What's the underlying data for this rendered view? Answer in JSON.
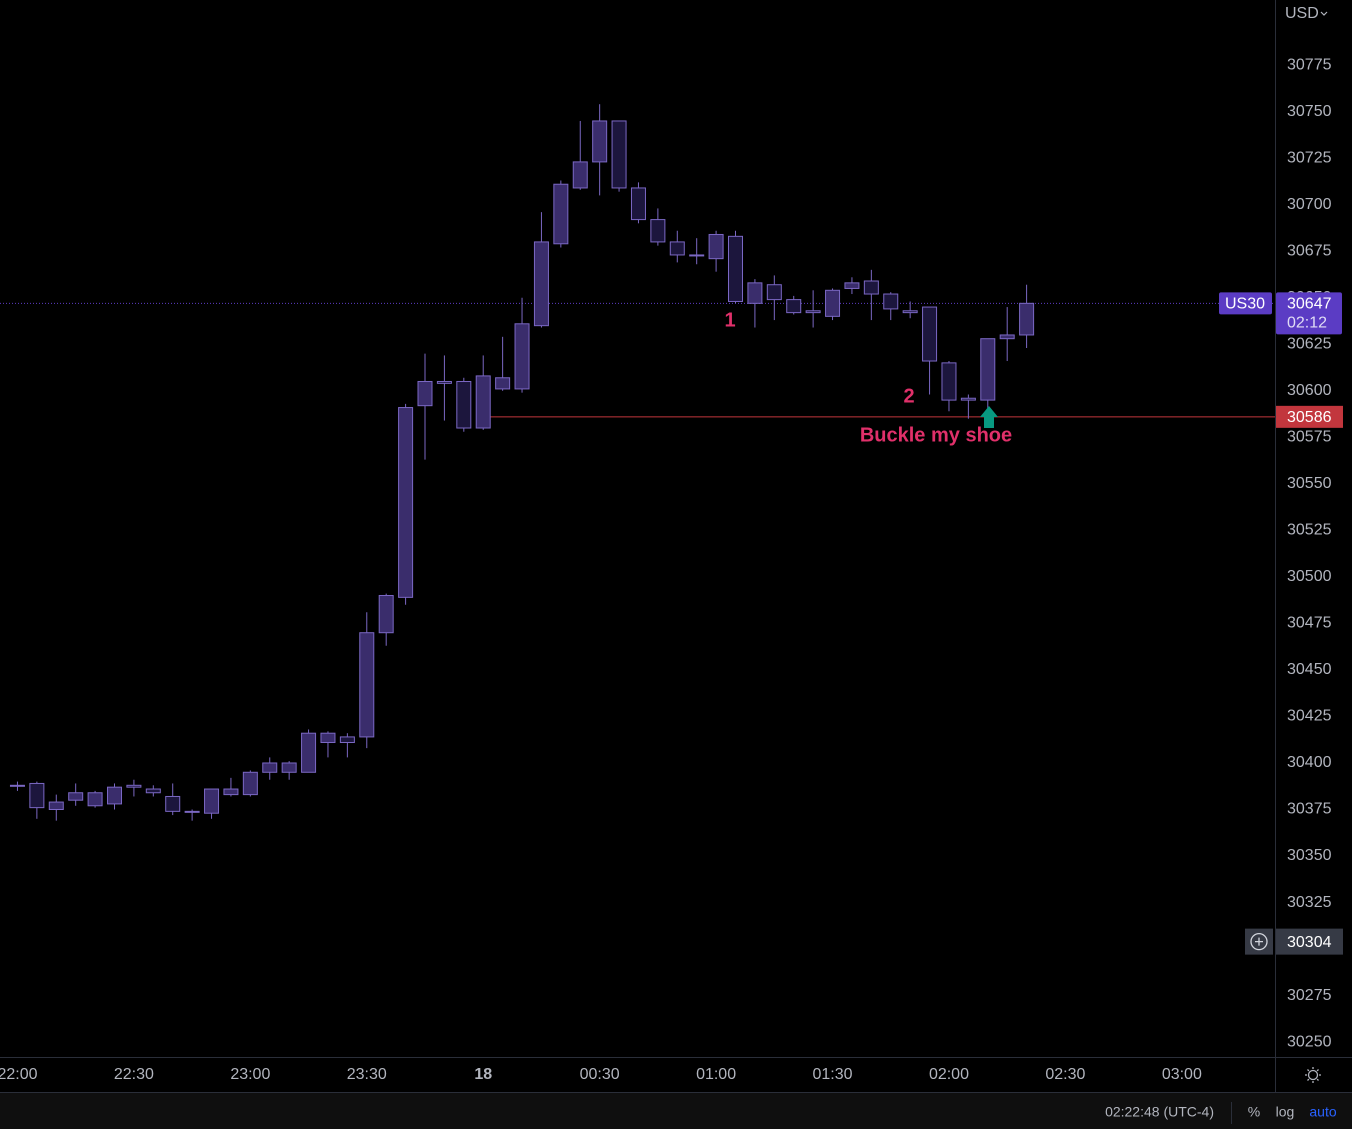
{
  "currency": "USD",
  "chart_data": {
    "type": "candlestick",
    "symbol": "US30",
    "x": [
      0,
      5,
      10,
      15,
      20,
      25,
      30,
      35,
      40,
      45,
      50,
      55,
      60,
      65,
      70,
      75,
      80,
      85,
      90,
      95,
      100,
      105,
      110,
      115,
      120,
      125,
      130,
      135,
      140,
      145,
      150,
      155,
      160,
      165,
      170,
      175,
      180,
      185,
      190,
      195,
      200,
      205,
      210,
      215,
      220,
      225,
      230,
      235,
      240,
      245,
      250,
      255,
      260
    ],
    "open": [
      30388,
      30389,
      30375,
      30380,
      30377,
      30378,
      30388,
      30386,
      30382,
      30374,
      30373,
      30383,
      30383,
      30395,
      30395,
      30395,
      30411,
      30414,
      30414,
      30470,
      30489,
      30592,
      30605,
      30605,
      30580,
      30601,
      30601,
      30635,
      30679,
      30709,
      30723,
      30745,
      30709,
      30692,
      30680,
      30673,
      30671,
      30683,
      30647,
      30657,
      30649,
      30643,
      30640,
      30655,
      30659,
      30652,
      30643,
      30645,
      30615,
      30596,
      30595,
      30628,
      30630
    ],
    "high": [
      30390,
      30390,
      30383,
      30389,
      30385,
      30389,
      30391,
      30388,
      30389,
      30375,
      30386,
      30392,
      30396,
      30403,
      30401,
      30418,
      30417,
      30416,
      30481,
      30491,
      30593,
      30620,
      30619,
      30607,
      30619,
      30629,
      30650,
      30696,
      30713,
      30745,
      30754,
      30745,
      30712,
      30698,
      30686,
      30682,
      30686,
      30686,
      30660,
      30662,
      30651,
      30654,
      30655,
      30661,
      30665,
      30653,
      30648,
      30645,
      30616,
      30598,
      30628,
      30645,
      30657
    ],
    "low": [
      30385,
      30370,
      30369,
      30377,
      30376,
      30375,
      30382,
      30382,
      30372,
      30369,
      30370,
      30382,
      30382,
      30391,
      30391,
      30395,
      30403,
      30403,
      30408,
      30463,
      30485,
      30563,
      30584,
      30578,
      30579,
      30600,
      30599,
      30634,
      30677,
      30708,
      30705,
      30707,
      30690,
      30678,
      30669,
      30668,
      30664,
      30647,
      30634,
      30638,
      30641,
      30634,
      30638,
      30652,
      30638,
      30638,
      30639,
      30598,
      30589,
      30585,
      30589,
      30616,
      30623
    ],
    "close": [
      30388,
      30376,
      30379,
      30384,
      30384,
      30387,
      30387,
      30384,
      30374,
      30374,
      30386,
      30386,
      30395,
      30400,
      30400,
      30416,
      30416,
      30411,
      30470,
      30490,
      30591,
      30605,
      30604,
      30580,
      30608,
      30607,
      30636,
      30680,
      30711,
      30723,
      30745,
      30709,
      30692,
      30680,
      30673,
      30673,
      30684,
      30648,
      30658,
      30649,
      30642,
      30642,
      30654,
      30658,
      30652,
      30644,
      30642,
      30616,
      30595,
      30595,
      30628,
      30630,
      30647
    ],
    "up_color": "#3a2d6c",
    "down_color": "#1c163d",
    "border_color": "#7b68c4",
    "xlim": [
      -4.5,
      324
    ],
    "xticks": [
      {
        "value": 0,
        "label": "22:00"
      },
      {
        "value": 30,
        "label": "22:30"
      },
      {
        "value": 60,
        "label": "23:00"
      },
      {
        "value": 90,
        "label": "23:30"
      },
      {
        "value": 120,
        "label": "18"
      },
      {
        "value": 150,
        "label": "00:30"
      },
      {
        "value": 180,
        "label": "01:00"
      },
      {
        "value": 210,
        "label": "01:30"
      },
      {
        "value": 240,
        "label": "02:00"
      },
      {
        "value": 270,
        "label": "02:30"
      },
      {
        "value": 300,
        "label": "03:00"
      }
    ],
    "ylim": [
      30242,
      30810
    ],
    "yticks": [
      30250,
      30275,
      30300,
      30325,
      30350,
      30375,
      30400,
      30425,
      30450,
      30475,
      30500,
      30525,
      30550,
      30575,
      30600,
      30625,
      30650,
      30675,
      30700,
      30725,
      30750,
      30775
    ],
    "last_price": 30647,
    "countdown": "02:12",
    "price_line": 30586,
    "crosshair_price": 30304,
    "annotations": [
      "1",
      "2",
      "Buckle my shoe"
    ]
  },
  "status_bar": {
    "time": "02:22:48 (UTC-4)",
    "percent": "%",
    "log": "log",
    "auto": "auto"
  }
}
